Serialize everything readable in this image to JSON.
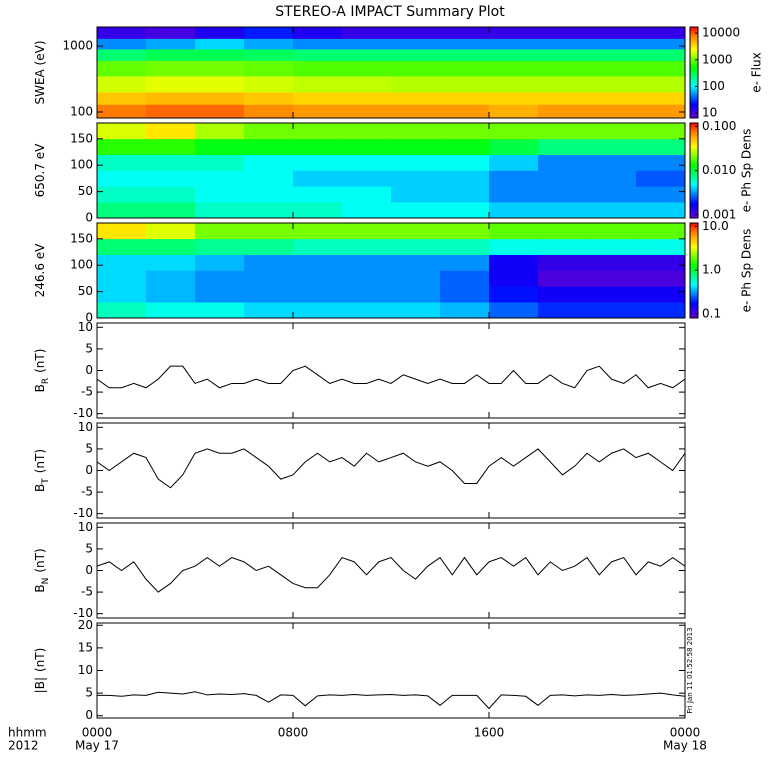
{
  "chart_data": [
    {
      "type": "heatmap",
      "title": "STEREO-A IMPACT Summary Plot",
      "ylabel": "SWEA (eV)",
      "ylog": true,
      "xlim": [
        0,
        24
      ],
      "ylim": [
        81,
        1950
      ],
      "yticks": [
        100,
        1000
      ],
      "x_edges": [
        0,
        2,
        4,
        6,
        8,
        10,
        12,
        14,
        16,
        18,
        20,
        22,
        24
      ],
      "y_edges": [
        81,
        130,
        200,
        350,
        600,
        900,
        1300,
        1950
      ],
      "z": [
        [
          8000,
          9000,
          9000,
          7000,
          6000,
          6000,
          6000,
          6000,
          5000,
          6000,
          6000,
          6000
        ],
        [
          4000,
          4500,
          4500,
          4000,
          3500,
          3500,
          3500,
          3500,
          3500,
          3500,
          3500,
          3500
        ],
        [
          1800,
          2000,
          2000,
          1800,
          1600,
          1600,
          1500,
          1500,
          1500,
          1500,
          1500,
          1500
        ],
        [
          900,
          1000,
          1000,
          900,
          800,
          800,
          800,
          800,
          800,
          800,
          800,
          800
        ],
        [
          250,
          300,
          300,
          280,
          250,
          250,
          250,
          250,
          250,
          250,
          250,
          250
        ],
        [
          50,
          60,
          80,
          60,
          50,
          50,
          50,
          50,
          50,
          50,
          50,
          50
        ],
        [
          12,
          10,
          15,
          25,
          15,
          12,
          12,
          12,
          12,
          12,
          12,
          12
        ]
      ],
      "zlog": true,
      "zlim": [
        6.5,
        17000
      ],
      "zticks": [
        10,
        100,
        1000,
        10000
      ],
      "zlabel": "e- Flux"
    },
    {
      "type": "heatmap",
      "ylabel": "650.7 eV",
      "ylog": false,
      "xlim": [
        0,
        24
      ],
      "ylim": [
        0,
        180
      ],
      "yticks": [
        0,
        50,
        100,
        150
      ],
      "x_edges": [
        0,
        2,
        4,
        6,
        8,
        10,
        12,
        14,
        16,
        18,
        20,
        22,
        24
      ],
      "y_edges": [
        0,
        30,
        60,
        90,
        120,
        150,
        180
      ],
      "z": [
        [
          0.008,
          0.008,
          0.006,
          0.006,
          0.006,
          0.005,
          0.005,
          0.005,
          0.004,
          0.004,
          0.004,
          0.004
        ],
        [
          0.006,
          0.006,
          0.005,
          0.005,
          0.005,
          0.005,
          0.004,
          0.004,
          0.003,
          0.003,
          0.003,
          0.003
        ],
        [
          0.005,
          0.005,
          0.005,
          0.005,
          0.004,
          0.004,
          0.004,
          0.004,
          0.003,
          0.003,
          0.003,
          0.0025
        ],
        [
          0.006,
          0.006,
          0.006,
          0.005,
          0.005,
          0.005,
          0.005,
          0.005,
          0.004,
          0.003,
          0.003,
          0.003
        ],
        [
          0.015,
          0.015,
          0.012,
          0.012,
          0.012,
          0.012,
          0.012,
          0.012,
          0.01,
          0.008,
          0.008,
          0.008
        ],
        [
          0.03,
          0.04,
          0.025,
          0.02,
          0.02,
          0.02,
          0.02,
          0.02,
          0.02,
          0.02,
          0.02,
          0.02
        ]
      ],
      "zlog": true,
      "zlim": [
        0.00085,
        0.12
      ],
      "zticks": [
        {
          "value": 0.001,
          "label": "0.001"
        },
        {
          "value": 0.01,
          "label": "0.010"
        },
        {
          "value": 0.1,
          "label": "0.100"
        }
      ],
      "zlabel": "e- Ph Sp Dens"
    },
    {
      "type": "heatmap",
      "ylabel": "246.6 eV",
      "ylog": false,
      "xlim": [
        0,
        24
      ],
      "ylim": [
        0,
        180
      ],
      "yticks": [
        0,
        50,
        100,
        150
      ],
      "x_edges": [
        0,
        2,
        4,
        6,
        8,
        10,
        12,
        14,
        16,
        18,
        20,
        22,
        24
      ],
      "y_edges": [
        0,
        30,
        60,
        90,
        120,
        150,
        180
      ],
      "z": [
        [
          0.6,
          0.5,
          0.5,
          0.4,
          0.4,
          0.4,
          0.4,
          0.35,
          0.25,
          0.2,
          0.2,
          0.2
        ],
        [
          0.4,
          0.35,
          0.3,
          0.3,
          0.3,
          0.3,
          0.3,
          0.25,
          0.18,
          0.15,
          0.15,
          0.15
        ],
        [
          0.4,
          0.35,
          0.3,
          0.3,
          0.3,
          0.3,
          0.3,
          0.25,
          0.15,
          0.1,
          0.1,
          0.1
        ],
        [
          0.4,
          0.4,
          0.35,
          0.3,
          0.3,
          0.3,
          0.3,
          0.3,
          0.15,
          0.12,
          0.12,
          0.12
        ],
        [
          0.8,
          0.8,
          0.7,
          0.7,
          0.6,
          0.6,
          0.6,
          0.6,
          0.5,
          0.5,
          0.5,
          0.5
        ],
        [
          4,
          3,
          2,
          2,
          2,
          2,
          2,
          2,
          1.8,
          1.8,
          1.8,
          1.8
        ]
      ],
      "zlog": true,
      "zlim": [
        0.08,
        12
      ],
      "zticks": [
        {
          "value": 0.1,
          "label": "0.1"
        },
        {
          "value": 1,
          "label": "1.0"
        },
        {
          "value": 10,
          "label": "10.0"
        }
      ],
      "zlabel": "e- Ph Sp Dens"
    },
    {
      "type": "line",
      "ylabel": "B",
      "ylabel_sub": "R",
      "ylabel_unit": "(nT)",
      "color": "#000000",
      "xlim": [
        0,
        24
      ],
      "ylim": [
        -11,
        11
      ],
      "yticks": [
        -10,
        -5,
        0,
        5,
        10
      ],
      "x": [
        0,
        0.5,
        1,
        1.5,
        2,
        2.5,
        3,
        3.5,
        4,
        4.5,
        5,
        5.5,
        6,
        6.5,
        7,
        7.5,
        8,
        8.5,
        9,
        9.5,
        10,
        10.5,
        11,
        11.5,
        12,
        12.5,
        13,
        13.5,
        14,
        14.5,
        15,
        15.5,
        16,
        16.5,
        17,
        17.5,
        18,
        18.5,
        19,
        19.5,
        20,
        20.5,
        21,
        21.5,
        22,
        22.5,
        23,
        23.5,
        24
      ],
      "values": [
        -2,
        -4,
        -4,
        -3,
        -4,
        -2,
        1,
        1,
        -3,
        -2,
        -4,
        -3,
        -3,
        -2,
        -3,
        -3,
        0,
        1,
        -1,
        -3,
        -2,
        -3,
        -3,
        -2,
        -3,
        -1,
        -2,
        -3,
        -2,
        -3,
        -3,
        -1,
        -3,
        -3,
        0,
        -3,
        -3,
        -1,
        -3,
        -4,
        0,
        1,
        -2,
        -3,
        -1,
        -4,
        -3,
        -4,
        -2
      ]
    },
    {
      "type": "line",
      "ylabel": "B",
      "ylabel_sub": "T",
      "ylabel_unit": "(nT)",
      "color": "#000000",
      "xlim": [
        0,
        24
      ],
      "ylim": [
        -11,
        11
      ],
      "yticks": [
        -10,
        -5,
        0,
        5,
        10
      ],
      "x": [
        0,
        0.5,
        1,
        1.5,
        2,
        2.5,
        3,
        3.5,
        4,
        4.5,
        5,
        5.5,
        6,
        6.5,
        7,
        7.5,
        8,
        8.5,
        9,
        9.5,
        10,
        10.5,
        11,
        11.5,
        12,
        12.5,
        13,
        13.5,
        14,
        14.5,
        15,
        15.5,
        16,
        16.5,
        17,
        17.5,
        18,
        18.5,
        19,
        19.5,
        20,
        20.5,
        21,
        21.5,
        22,
        22.5,
        23,
        23.5,
        24
      ],
      "values": [
        2,
        0,
        2,
        4,
        3,
        -2,
        -4,
        -1,
        4,
        5,
        4,
        4,
        5,
        3,
        1,
        -2,
        -1,
        2,
        4,
        2,
        3,
        1,
        4,
        2,
        3,
        4,
        2,
        1,
        2,
        0,
        -3,
        -3,
        1,
        3,
        1,
        3,
        5,
        2,
        -1,
        1,
        4,
        2,
        4,
        5,
        3,
        4,
        2,
        0,
        4
      ]
    },
    {
      "type": "line",
      "ylabel": "B",
      "ylabel_sub": "N",
      "ylabel_unit": "(nT)",
      "color": "#000000",
      "xlim": [
        0,
        24
      ],
      "ylim": [
        -11,
        11
      ],
      "yticks": [
        -10,
        -5,
        0,
        5,
        10
      ],
      "x": [
        0,
        0.5,
        1,
        1.5,
        2,
        2.5,
        3,
        3.5,
        4,
        4.5,
        5,
        5.5,
        6,
        6.5,
        7,
        7.5,
        8,
        8.5,
        9,
        9.5,
        10,
        10.5,
        11,
        11.5,
        12,
        12.5,
        13,
        13.5,
        14,
        14.5,
        15,
        15.5,
        16,
        16.5,
        17,
        17.5,
        18,
        18.5,
        19,
        19.5,
        20,
        20.5,
        21,
        21.5,
        22,
        22.5,
        23,
        23.5,
        24
      ],
      "values": [
        1,
        2,
        0,
        2,
        -2,
        -5,
        -3,
        0,
        1,
        3,
        1,
        3,
        2,
        0,
        1,
        -1,
        -3,
        -4,
        -4,
        -1,
        3,
        2,
        -1,
        2,
        3,
        0,
        -2,
        1,
        3,
        -1,
        3,
        -1,
        2,
        3,
        1,
        3,
        -1,
        2,
        0,
        1,
        3,
        -1,
        2,
        3,
        -1,
        2,
        1,
        3,
        1
      ]
    },
    {
      "type": "line",
      "ylabel": "|B|",
      "ylabel_unit": "(nT)",
      "color": "#000000",
      "xlim": [
        0,
        24
      ],
      "ylim": [
        -0.5,
        20.5
      ],
      "yticks": [
        0,
        5,
        10,
        15,
        20
      ],
      "x": [
        0,
        0.5,
        1,
        1.5,
        2,
        2.5,
        3,
        3.5,
        4,
        4.5,
        5,
        5.5,
        6,
        6.5,
        7,
        7.5,
        8,
        8.5,
        9,
        9.5,
        10,
        10.5,
        11,
        11.5,
        12,
        12.5,
        13,
        13.5,
        14,
        14.5,
        15,
        15.5,
        16,
        16.5,
        17,
        17.5,
        18,
        18.5,
        19,
        19.5,
        20,
        20.5,
        21,
        21.5,
        22,
        22.5,
        23,
        23.5,
        24
      ],
      "values": [
        4.5,
        4.5,
        4.3,
        4.6,
        4.5,
        5.2,
        5,
        4.8,
        5.3,
        4.6,
        4.8,
        4.7,
        4.9,
        4.5,
        3,
        4.6,
        4.5,
        2.2,
        4.4,
        4.6,
        4.5,
        4.7,
        4.5,
        4.6,
        4.7,
        4.5,
        4.6,
        4.4,
        2.3,
        4.5,
        4.5,
        4.5,
        1.6,
        4.6,
        4.5,
        4.3,
        2.3,
        4.5,
        4.6,
        4.4,
        4.6,
        4.5,
        4.7,
        4.5,
        4.6,
        4.8,
        5,
        4.6,
        4.3
      ],
      "xticks": [
        {
          "value": 0,
          "label": "0000"
        },
        {
          "value": 8,
          "label": "0800"
        },
        {
          "value": 16,
          "label": "1600"
        },
        {
          "value": 24,
          "label": "0000"
        }
      ],
      "x_date_labels": [
        {
          "value": 0,
          "label": "May 17"
        },
        {
          "value": 24,
          "label": "May 18"
        }
      ],
      "x_header": [
        "hhmm",
        "2012"
      ],
      "timestamp": "Fri Jan 11 01:52:58 2013"
    }
  ]
}
